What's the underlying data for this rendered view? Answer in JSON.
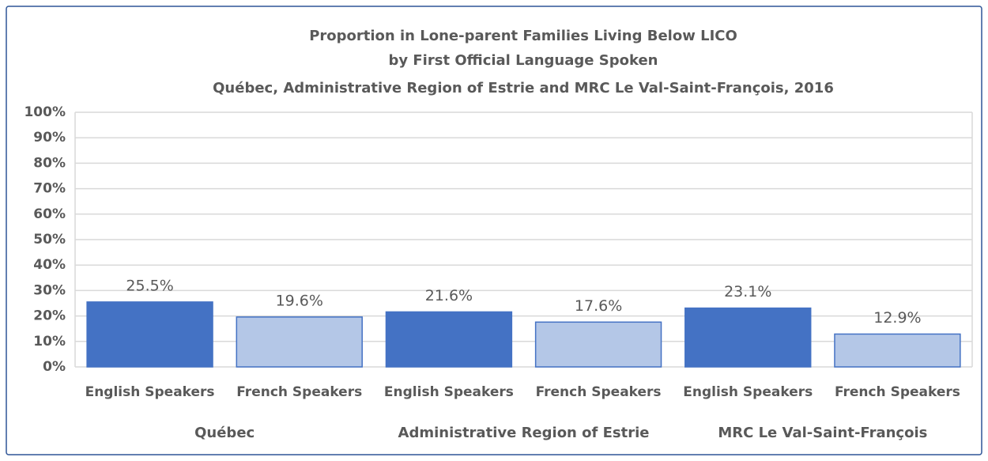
{
  "chart_data": {
    "type": "bar",
    "title": [
      "Proportion  in Lone-parent Families Living Below LICO",
      "by First Official Language Spoken",
      "Québec, Administrative Region of Estrie and MRC Le Val-Saint-François,  2016"
    ],
    "categories": [
      "English Speakers",
      "French Speakers",
      "English Speakers",
      "French Speakers",
      "English Speakers",
      "French Speakers"
    ],
    "groups": [
      "Québec",
      "Administrative  Region of Estrie",
      "MRC Le Val-Saint-François"
    ],
    "values": [
      25.5,
      19.6,
      21.6,
      17.6,
      23.1,
      12.9
    ],
    "value_labels": [
      "25.5%",
      "19.6%",
      "21.6%",
      "17.6%",
      "23.1%",
      "12.9%"
    ],
    "colors": [
      "#4472c4",
      "#b4c7e7",
      "#4472c4",
      "#b4c7e7",
      "#4472c4",
      "#b4c7e7"
    ],
    "ylim": [
      0,
      100
    ],
    "yticks": [
      {
        "value": 0,
        "label": "0%"
      },
      {
        "value": 10,
        "label": "10%"
      },
      {
        "value": 20,
        "label": "20%"
      },
      {
        "value": 30,
        "label": "30%"
      },
      {
        "value": 40,
        "label": "40%"
      },
      {
        "value": 50,
        "label": "50%"
      },
      {
        "value": 60,
        "label": "60%"
      },
      {
        "value": 70,
        "label": "70%"
      },
      {
        "value": 80,
        "label": "80%"
      },
      {
        "value": 90,
        "label": "90%"
      },
      {
        "value": 100,
        "label": "100%"
      }
    ],
    "grid": true
  }
}
